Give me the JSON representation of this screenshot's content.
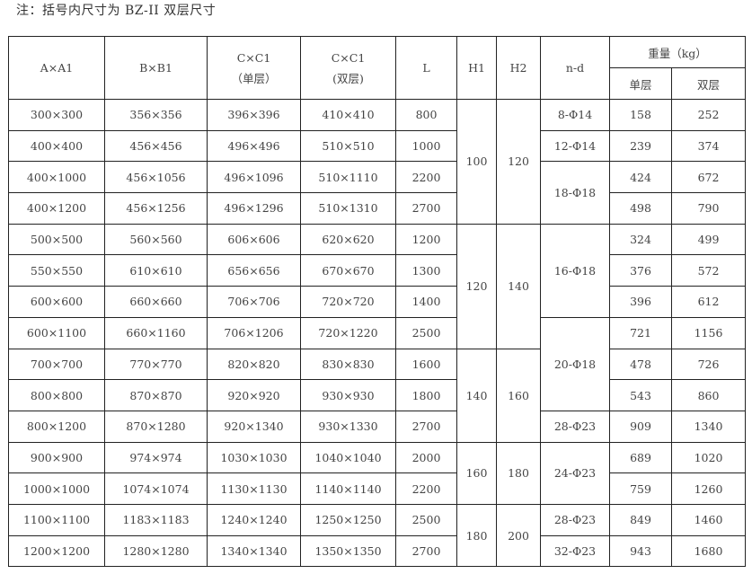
{
  "note": "注：括号内尺寸为 BZ-II 双层尺寸",
  "header": {
    "a": "A×A1",
    "b": "B×B1",
    "c_single_1": "C×C1",
    "c_single_2": "（单层）",
    "c_double_1": "C×C1",
    "c_double_2": "(双层)",
    "l": "L",
    "h1": "H1",
    "h2": "H2",
    "nd": "n-d",
    "weight": "重量（kg）",
    "weight_single": "单层",
    "weight_double": "双层"
  },
  "rows": [
    {
      "a": "300×300",
      "b": "356×356",
      "c1": "396×396",
      "c2": "410×410",
      "l": "800",
      "ws": "158",
      "wd": "252"
    },
    {
      "a": "400×400",
      "b": "456×456",
      "c1": "496×496",
      "c2": "510×510",
      "l": "1000",
      "ws": "239",
      "wd": "374"
    },
    {
      "a": "400×1000",
      "b": "456×1056",
      "c1": "496×1096",
      "c2": "510×1110",
      "l": "2200",
      "ws": "424",
      "wd": "672"
    },
    {
      "a": "400×1200",
      "b": "456×1256",
      "c1": "496×1296",
      "c2": "510×1310",
      "l": "2700",
      "ws": "498",
      "wd": "790"
    },
    {
      "a": "500×500",
      "b": "560×560",
      "c1": "606×606",
      "c2": "620×620",
      "l": "1200",
      "ws": "324",
      "wd": "499"
    },
    {
      "a": "550×550",
      "b": "610×610",
      "c1": "656×656",
      "c2": "670×670",
      "l": "1300",
      "ws": "376",
      "wd": "572"
    },
    {
      "a": "600×600",
      "b": "660×660",
      "c1": "706×706",
      "c2": "720×720",
      "l": "1400",
      "ws": "396",
      "wd": "612"
    },
    {
      "a": "600×1100",
      "b": "660×1160",
      "c1": "706×1206",
      "c2": "720×1220",
      "l": "2500",
      "ws": "721",
      "wd": "1156"
    },
    {
      "a": "700×700",
      "b": "770×770",
      "c1": "820×820",
      "c2": "830×830",
      "l": "1600",
      "ws": "478",
      "wd": "726"
    },
    {
      "a": "800×800",
      "b": "870×870",
      "c1": "920×920",
      "c2": "930×930",
      "l": "1800",
      "ws": "543",
      "wd": "860"
    },
    {
      "a": "800×1200",
      "b": "870×1280",
      "c1": "920×1340",
      "c2": "930×1330",
      "l": "2700",
      "ws": "909",
      "wd": "1340"
    },
    {
      "a": "900×900",
      "b": "974×974",
      "c1": "1030×1030",
      "c2": "1040×1040",
      "l": "2000",
      "ws": "689",
      "wd": "1020"
    },
    {
      "a": "1000×1000",
      "b": "1074×1074",
      "c1": "1130×1130",
      "c2": "1140×1140",
      "l": "2200",
      "ws": "759",
      "wd": "1260"
    },
    {
      "a": "1100×1100",
      "b": "1183×1183",
      "c1": "1240×1240",
      "c2": "1250×1250",
      "l": "2500",
      "ws": "849",
      "wd": "1460"
    },
    {
      "a": "1200×1200",
      "b": "1280×1280",
      "c1": "1340×1340",
      "c2": "1350×1350",
      "l": "2700",
      "ws": "943",
      "wd": "1680"
    }
  ],
  "h_groups": [
    {
      "h1": "100",
      "h2": "120",
      "rows": 4
    },
    {
      "h1": "120",
      "h2": "140",
      "rows": 4
    },
    {
      "h1": "140",
      "h2": "160",
      "rows": 3
    },
    {
      "h1": "160",
      "h2": "180",
      "rows": 2
    },
    {
      "h1": "180",
      "h2": "200",
      "rows": 2
    }
  ],
  "nd_groups": [
    {
      "nd": "8-Φ14",
      "rows": 1
    },
    {
      "nd": "12-Φ14",
      "rows": 1
    },
    {
      "nd": "18-Φ18",
      "rows": 2
    },
    {
      "nd": "16-Φ18",
      "rows": 3
    },
    {
      "nd": "20-Φ18",
      "rows": 3
    },
    {
      "nd": "28-Φ23",
      "rows": 1
    },
    {
      "nd": "24-Φ23",
      "rows": 2
    },
    {
      "nd": "28-Φ23",
      "rows": 1
    },
    {
      "nd": "32-Φ23",
      "rows": 1
    }
  ]
}
